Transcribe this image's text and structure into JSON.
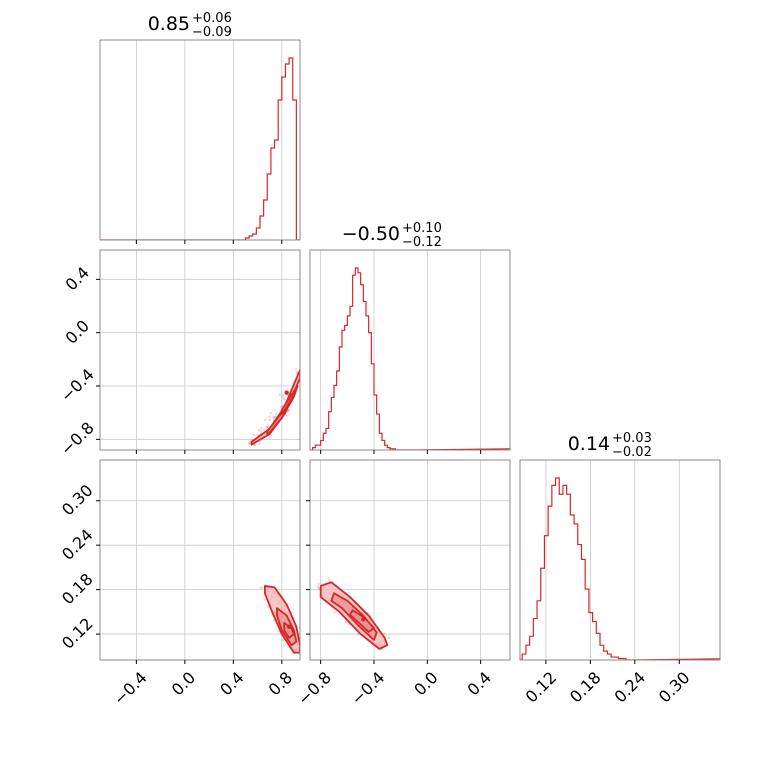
{
  "style": {
    "line_color": "#d62728",
    "fill_light": "#f3b4b4",
    "fill_mid": "#ec8f8f",
    "grid_color": "#c8c8c8",
    "frame_color": "#7f7f7f"
  },
  "chart_data": {
    "type": "corner",
    "parameters": [
      {
        "index": 0,
        "range": [
          -0.7,
          0.95
        ],
        "ticks": [
          "-0.4",
          "0.0",
          "0.4",
          "0.8"
        ],
        "tick_values": [
          -0.4,
          0.0,
          0.4,
          0.8
        ]
      },
      {
        "index": 1,
        "range": [
          -0.88,
          0.62
        ],
        "ticks": [
          "-0.8",
          "-0.4",
          "0.0",
          "0.4"
        ],
        "tick_values": [
          -0.8,
          -0.4,
          0.0,
          0.4
        ]
      },
      {
        "index": 2,
        "range": [
          0.085,
          0.355
        ],
        "ticks": [
          "0.12",
          "0.18",
          "0.24",
          "0.30"
        ],
        "tick_values": [
          0.12,
          0.18,
          0.24,
          0.3
        ]
      }
    ],
    "titles": [
      {
        "base": "0.85",
        "plus": "+0.06",
        "minus": "−0.09"
      },
      {
        "base": "−0.50",
        "plus": "+0.10",
        "minus": "−0.12"
      },
      {
        "base": "0.14",
        "plus": "+0.03",
        "minus": "−0.02"
      }
    ],
    "histograms": [
      {
        "param": 0,
        "edges": [
          0.5,
          0.53,
          0.56,
          0.59,
          0.62,
          0.65,
          0.68,
          0.71,
          0.74,
          0.77,
          0.8,
          0.83,
          0.86,
          0.89,
          0.92,
          0.95
        ],
        "counts": [
          2,
          4,
          6,
          12,
          24,
          40,
          66,
          92,
          100,
          140,
          163,
          176,
          182,
          140,
          0
        ]
      },
      {
        "param": 1,
        "edges": [
          -0.88,
          -0.86,
          -0.84,
          -0.82,
          -0.8,
          -0.78,
          -0.76,
          -0.74,
          -0.72,
          -0.7,
          -0.68,
          -0.66,
          -0.64,
          -0.62,
          -0.6,
          -0.58,
          -0.56,
          -0.54,
          -0.52,
          -0.5,
          -0.48,
          -0.46,
          -0.44,
          -0.42,
          -0.4,
          -0.38,
          -0.36,
          -0.34,
          -0.32,
          -0.3,
          -0.28,
          -0.26,
          -0.24,
          -0.22,
          -0.2,
          -0.18,
          -0.16,
          -0.14,
          -0.12,
          -0.1
        ],
        "counts": [
          0,
          2,
          4,
          4,
          8,
          14,
          18,
          32,
          44,
          54,
          66,
          86,
          100,
          104,
          112,
          120,
          146,
          152,
          148,
          138,
          124,
          112,
          98,
          72,
          46,
          30,
          14,
          8,
          4,
          2,
          1,
          1,
          0,
          0,
          0,
          0,
          0,
          0,
          0
        ],
        "tail": {
          "from": -0.1,
          "to": 0.62,
          "count": 1
        }
      },
      {
        "param": 2,
        "edges": [
          0.088,
          0.093,
          0.098,
          0.103,
          0.108,
          0.113,
          0.118,
          0.123,
          0.128,
          0.133,
          0.138,
          0.143,
          0.148,
          0.153,
          0.158,
          0.163,
          0.168,
          0.173,
          0.178,
          0.183,
          0.188,
          0.193,
          0.198,
          0.203,
          0.208,
          0.213,
          0.218,
          0.223,
          0.228,
          0.233
        ],
        "counts": [
          4,
          10,
          16,
          28,
          40,
          62,
          84,
          104,
          118,
          123,
          112,
          118,
          112,
          98,
          92,
          78,
          68,
          48,
          32,
          26,
          18,
          10,
          6,
          4,
          2,
          2,
          1,
          1,
          0
        ],
        "tail": {
          "from": 0.233,
          "to": 0.355,
          "count": 1
        }
      }
    ],
    "pairs": [
      {
        "x_param": 0,
        "y_param": 1,
        "center": [
          0.84,
          -0.45
        ],
        "curve": "y = -0.85 + 0.55 * ((x - 0.5) / 0.45)^2",
        "levels": [
          {
            "points": [
              [
                0.55,
                -0.82
              ],
              [
                0.7,
                -0.72
              ],
              [
                0.82,
                -0.56
              ],
              [
                0.95,
                -0.28
              ],
              [
                0.95,
                -0.34
              ],
              [
                0.83,
                -0.6
              ],
              [
                0.7,
                -0.76
              ],
              [
                0.55,
                -0.84
              ]
            ]
          },
          {
            "points": [
              [
                0.68,
                -0.74
              ],
              [
                0.8,
                -0.6
              ],
              [
                0.9,
                -0.44
              ],
              [
                0.93,
                -0.4
              ],
              [
                0.9,
                -0.48
              ],
              [
                0.8,
                -0.64
              ],
              [
                0.68,
                -0.77
              ]
            ]
          },
          {
            "points": [
              [
                0.8,
                -0.58
              ],
              [
                0.88,
                -0.46
              ],
              [
                0.9,
                -0.46
              ],
              [
                0.84,
                -0.56
              ],
              [
                0.8,
                -0.61
              ]
            ]
          }
        ]
      },
      {
        "x_param": 0,
        "y_param": 2,
        "center": [
          0.86,
          0.13
        ],
        "levels": [
          {
            "points": [
              [
                0.66,
                0.185
              ],
              [
                0.74,
                0.183
              ],
              [
                0.84,
                0.16
              ],
              [
                0.92,
                0.13
              ],
              [
                0.95,
                0.105
              ],
              [
                0.95,
                0.095
              ],
              [
                0.9,
                0.095
              ],
              [
                0.8,
                0.12
              ],
              [
                0.72,
                0.15
              ],
              [
                0.66,
                0.175
              ]
            ]
          },
          {
            "points": [
              [
                0.76,
                0.155
              ],
              [
                0.84,
                0.145
              ],
              [
                0.9,
                0.125
              ],
              [
                0.92,
                0.11
              ],
              [
                0.88,
                0.105
              ],
              [
                0.8,
                0.125
              ],
              [
                0.76,
                0.145
              ]
            ]
          },
          {
            "points": [
              [
                0.82,
                0.135
              ],
              [
                0.88,
                0.128
              ],
              [
                0.9,
                0.12
              ],
              [
                0.86,
                0.115
              ],
              [
                0.82,
                0.125
              ]
            ]
          }
        ]
      },
      {
        "x_param": 1,
        "y_param": 2,
        "center": [
          -0.48,
          0.14
        ],
        "levels": [
          {
            "points": [
              [
                -0.8,
                0.185
              ],
              [
                -0.72,
                0.19
              ],
              [
                -0.58,
                0.17
              ],
              [
                -0.44,
                0.145
              ],
              [
                -0.32,
                0.115
              ],
              [
                -0.3,
                0.105
              ],
              [
                -0.36,
                0.1
              ],
              [
                -0.5,
                0.12
              ],
              [
                -0.66,
                0.15
              ],
              [
                -0.8,
                0.17
              ]
            ]
          },
          {
            "points": [
              [
                -0.7,
                0.175
              ],
              [
                -0.6,
                0.165
              ],
              [
                -0.48,
                0.145
              ],
              [
                -0.38,
                0.122
              ],
              [
                -0.4,
                0.112
              ],
              [
                -0.52,
                0.132
              ],
              [
                -0.64,
                0.155
              ],
              [
                -0.72,
                0.165
              ]
            ]
          },
          {
            "points": [
              [
                -0.56,
                0.152
              ],
              [
                -0.47,
                0.142
              ],
              [
                -0.4,
                0.128
              ],
              [
                -0.44,
                0.123
              ],
              [
                -0.53,
                0.138
              ],
              [
                -0.58,
                0.146
              ]
            ]
          }
        ]
      }
    ],
    "xlabel": "",
    "ylabel": "",
    "grid": true,
    "legend": "none"
  }
}
